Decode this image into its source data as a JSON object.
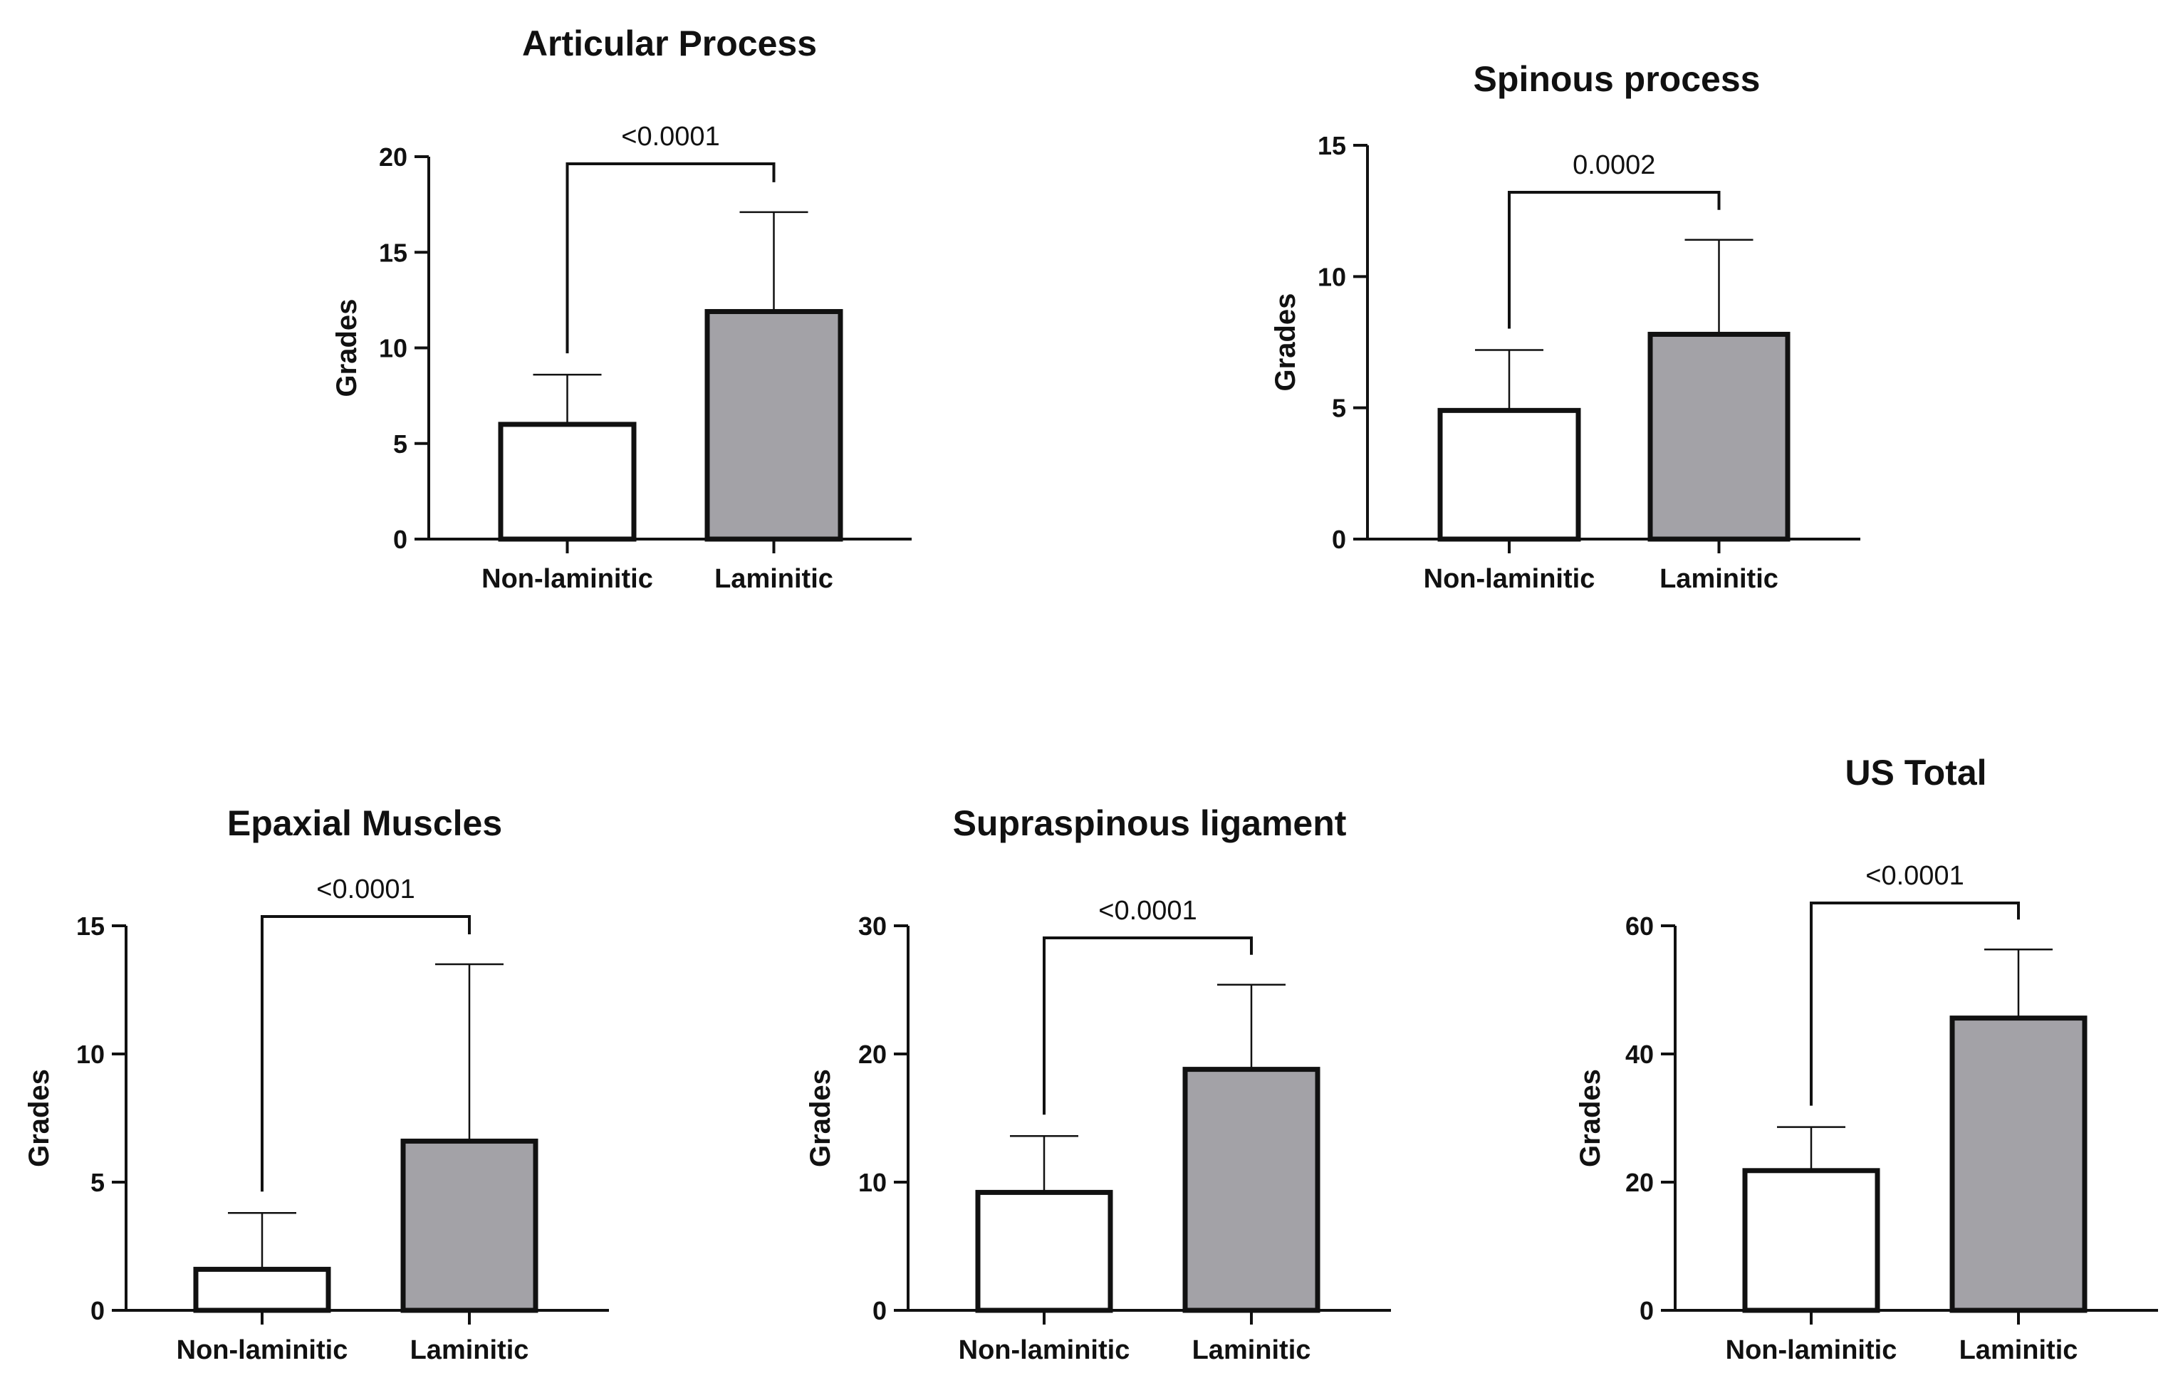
{
  "colors": {
    "non_laminitic_fill": "#ffffff",
    "laminitic_fill": "#a3a2a7",
    "stroke": "#111111"
  },
  "chart_data": [
    {
      "type": "bar",
      "title": "Articular Process",
      "ylabel": "Grades",
      "categories": [
        "Non-laminitic",
        "Laminitic"
      ],
      "values": [
        6.0,
        11.9
      ],
      "error_upper": [
        8.6,
        17.1
      ],
      "ylim": [
        0,
        20
      ],
      "yticks": [
        "0",
        "5",
        "10",
        "15",
        "20"
      ],
      "significance": "<0.0001"
    },
    {
      "type": "bar",
      "title": "Spinous process",
      "ylabel": "Grades",
      "categories": [
        "Non-laminitic",
        "Laminitic"
      ],
      "values": [
        4.9,
        7.8
      ],
      "error_upper": [
        7.2,
        11.4
      ],
      "ylim": [
        0,
        15
      ],
      "yticks": [
        "0",
        "5",
        "10",
        "15"
      ],
      "significance": "0.0002"
    },
    {
      "type": "bar",
      "title": "Epaxial Muscles",
      "ylabel": "Grades",
      "categories": [
        "Non-laminitic",
        "Laminitic"
      ],
      "values": [
        1.6,
        6.6
      ],
      "error_upper": [
        3.8,
        13.5
      ],
      "ylim": [
        0,
        15
      ],
      "yticks": [
        "0",
        "5",
        "10",
        "15"
      ],
      "significance": "<0.0001"
    },
    {
      "type": "bar",
      "title": "Supraspinous ligament",
      "ylabel": "Grades",
      "categories": [
        "Non-laminitic",
        "Laminitic"
      ],
      "values": [
        9.2,
        18.8
      ],
      "error_upper": [
        13.6,
        25.4
      ],
      "ylim": [
        0,
        30
      ],
      "yticks": [
        "0",
        "10",
        "20",
        "30"
      ],
      "significance": "<0.0001"
    },
    {
      "type": "bar",
      "title": "US Total",
      "ylabel": "Grades",
      "categories": [
        "Non-laminitic",
        "Laminitic"
      ],
      "values": [
        21.8,
        45.6
      ],
      "error_upper": [
        28.6,
        56.3
      ],
      "ylim": [
        0,
        60
      ],
      "yticks": [
        "0",
        "20",
        "40",
        "60"
      ],
      "significance": "<0.0001"
    }
  ]
}
